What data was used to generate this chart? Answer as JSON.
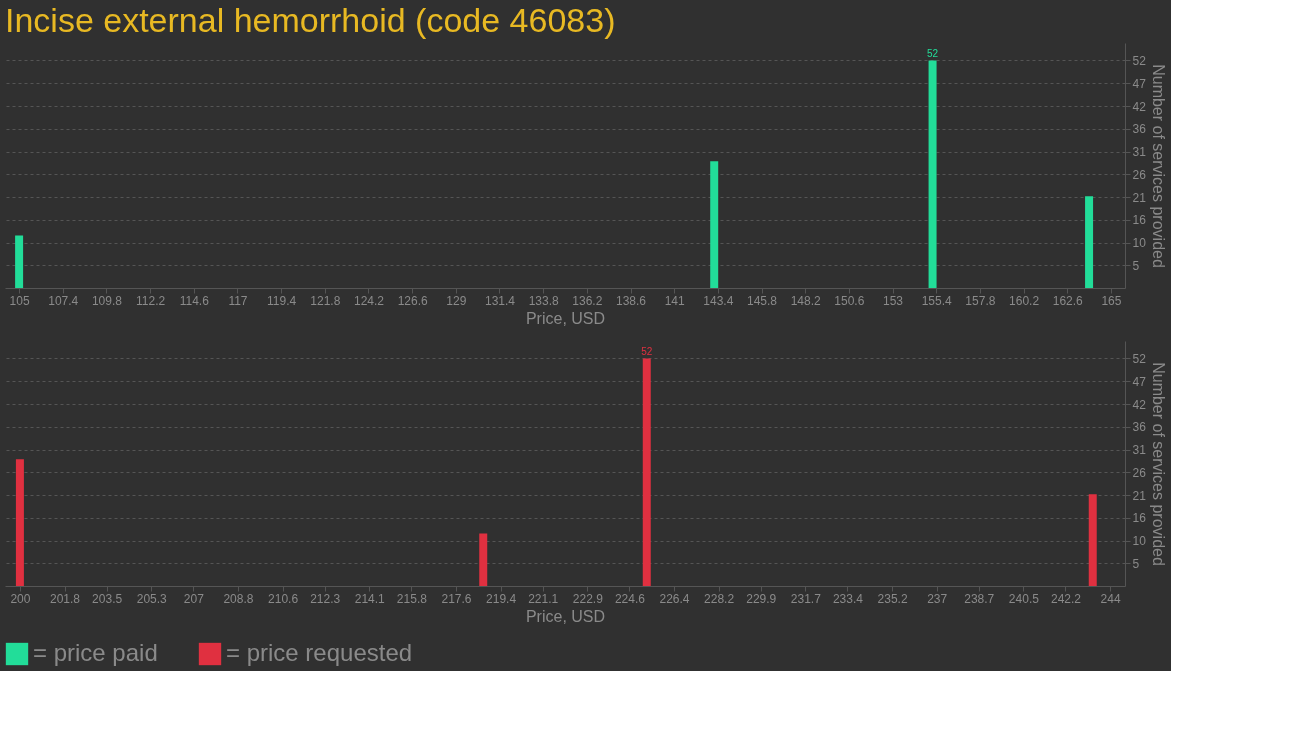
{
  "chart_data": [
    {
      "type": "bar",
      "title": "Incise external hemorrhoid (code 46083)",
      "xlabel": "Price, USD",
      "ylabel": "Number of services provided",
      "x": [
        105,
        143.2,
        155.2,
        163.8
      ],
      "series": [
        {
          "name": "= price paid",
          "color": "#22dd99",
          "values": [
            12,
            29,
            52,
            21
          ],
          "value_labels": [
            null,
            null,
            "52",
            null
          ]
        }
      ],
      "xlim": [
        104.5,
        165.5
      ],
      "xticks": [
        105,
        107.4,
        109.8,
        112.2,
        114.6,
        117,
        119.4,
        121.8,
        124.2,
        126.6,
        129,
        131.4,
        133.8,
        136.2,
        138.6,
        141,
        143.4,
        145.8,
        148.2,
        150.6,
        153,
        155.4,
        157.8,
        160.2,
        162.6,
        165
      ],
      "ylim": [
        0,
        56
      ],
      "yticks": [
        {
          "value": 5.2,
          "label": "5"
        },
        {
          "value": 10.4,
          "label": "10"
        },
        {
          "value": 15.6,
          "label": "16"
        },
        {
          "value": 20.8,
          "label": "21"
        },
        {
          "value": 26,
          "label": "26"
        },
        {
          "value": 31.2,
          "label": "31"
        },
        {
          "value": 36.4,
          "label": "36"
        },
        {
          "value": 41.6,
          "label": "42"
        },
        {
          "value": 46.8,
          "label": "47"
        },
        {
          "value": 52,
          "label": "52"
        }
      ],
      "grid": "y",
      "legend": "bottom"
    },
    {
      "type": "bar",
      "xlabel": "Price, USD",
      "ylabel": "Number of services provided",
      "x": [
        200,
        218.7,
        225.3,
        243.3
      ],
      "series": [
        {
          "name": "= price requested",
          "color": "#e03040",
          "values": [
            29,
            12,
            52,
            21
          ],
          "value_labels": [
            null,
            null,
            "52",
            null
          ]
        }
      ],
      "xlim": [
        199.6,
        244.4
      ],
      "xticks": [
        200,
        201.8,
        203.5,
        205.3,
        207,
        208.8,
        210.6,
        212.3,
        214.1,
        215.8,
        217.6,
        219.4,
        221.1,
        222.9,
        224.6,
        226.4,
        228.2,
        229.9,
        231.7,
        233.4,
        235.2,
        237,
        238.7,
        240.5,
        242.2,
        244
      ],
      "ylim": [
        0,
        56
      ],
      "yticks": [
        {
          "value": 5.2,
          "label": "5"
        },
        {
          "value": 10.4,
          "label": "10"
        },
        {
          "value": 15.6,
          "label": "16"
        },
        {
          "value": 20.8,
          "label": "21"
        },
        {
          "value": 26,
          "label": "26"
        },
        {
          "value": 31.2,
          "label": "31"
        },
        {
          "value": 36.4,
          "label": "36"
        },
        {
          "value": 41.6,
          "label": "42"
        },
        {
          "value": 46.8,
          "label": "47"
        },
        {
          "value": 52,
          "label": "52"
        }
      ],
      "grid": "y",
      "legend": "bottom"
    }
  ]
}
